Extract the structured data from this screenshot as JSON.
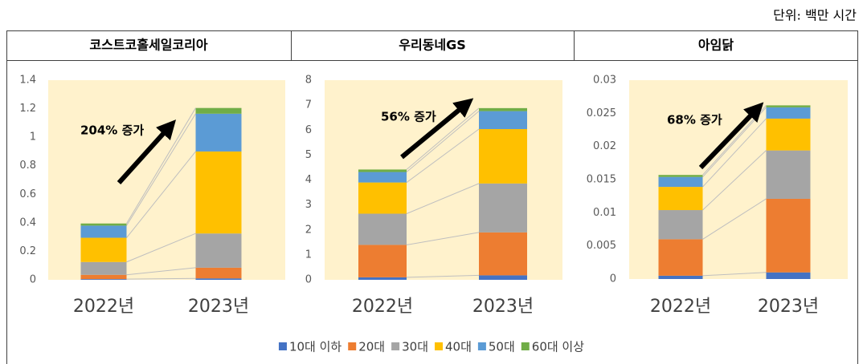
{
  "unit": "단위: 백만 시간",
  "legend": [
    {
      "name": "10대 이하",
      "color": "#4472c4"
    },
    {
      "name": "20대",
      "color": "#ed7d31"
    },
    {
      "name": "30대",
      "color": "#a5a5a5"
    },
    {
      "name": "40대",
      "color": "#ffc000"
    },
    {
      "name": "50대",
      "color": "#5b9bd5"
    },
    {
      "name": "60대 이상",
      "color": "#70ad47"
    }
  ],
  "chart_data": [
    {
      "type": "bar",
      "stacked": true,
      "title": "코스트코홀세일코리아",
      "annotation": "204% 증가",
      "categories": [
        "2022년",
        "2023년"
      ],
      "series": [
        {
          "values": [
            0.005,
            0.01
          ]
        },
        {
          "values": [
            0.03,
            0.075
          ]
        },
        {
          "values": [
            0.09,
            0.24
          ]
        },
        {
          "values": [
            0.17,
            0.575
          ]
        },
        {
          "values": [
            0.085,
            0.265
          ]
        },
        {
          "values": [
            0.015,
            0.04
          ]
        }
      ],
      "ylim": [
        0,
        1.4
      ],
      "yticks": [
        0,
        0.2,
        0.4,
        0.6,
        0.8,
        1,
        1.2,
        1.4
      ]
    },
    {
      "type": "bar",
      "stacked": true,
      "title": "우리동네GS",
      "annotation": "56% 증가",
      "categories": [
        "2022년",
        "2023년"
      ],
      "series": [
        {
          "values": [
            0.1,
            0.18
          ]
        },
        {
          "values": [
            1.3,
            1.72
          ]
        },
        {
          "values": [
            1.25,
            1.96
          ]
        },
        {
          "values": [
            1.25,
            2.18
          ]
        },
        {
          "values": [
            0.42,
            0.72
          ]
        },
        {
          "values": [
            0.1,
            0.12
          ]
        }
      ],
      "ylim": [
        0,
        8
      ],
      "yticks": [
        0,
        1,
        2,
        3,
        4,
        5,
        6,
        7,
        8
      ]
    },
    {
      "type": "bar",
      "stacked": true,
      "title": "아임닭",
      "annotation": "68% 증가",
      "categories": [
        "2022년",
        "2023년"
      ],
      "series": [
        {
          "values": [
            0.0005,
            0.001
          ]
        },
        {
          "values": [
            0.0055,
            0.0111
          ]
        },
        {
          "values": [
            0.0044,
            0.0073
          ]
        },
        {
          "values": [
            0.0035,
            0.0048
          ]
        },
        {
          "values": [
            0.0015,
            0.0017
          ]
        },
        {
          "values": [
            0.0003,
            0.0003
          ]
        }
      ],
      "ylim": [
        0,
        0.03
      ],
      "yticks": [
        0,
        0.005,
        0.01,
        0.015,
        0.02,
        0.025,
        0.03
      ]
    }
  ]
}
